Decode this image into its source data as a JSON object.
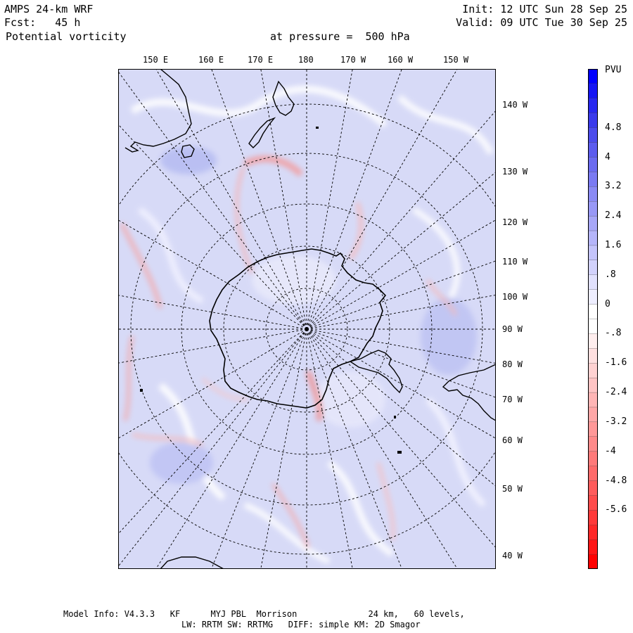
{
  "header": {
    "model": "AMPS 24-km WRF",
    "init": "Init: 12 UTC Sun 28 Sep 25",
    "fcst": "Fcst:   45 h",
    "valid": "Valid: 09 UTC Tue 30 Sep 25",
    "field": "Potential vorticity",
    "level": "at pressure =  500 hPa"
  },
  "map": {
    "top_longitudes": [
      "150 E",
      "160 E",
      "170 E",
      "180",
      "170 W",
      "160 W",
      "150 W"
    ],
    "right_longitudes": [
      "140 W",
      "130 W",
      "120 W",
      "110 W",
      "100 W",
      "90 W",
      "80 W",
      "70 W",
      "60 W",
      "50 W",
      "40 W"
    ]
  },
  "colorbar": {
    "unit": "PVU",
    "labels": [
      "4.8",
      "4",
      "3.2",
      "2.4",
      "1.6",
      ".8",
      "0",
      "-.8",
      "-1.6",
      "-2.4",
      "-3.2",
      "-4",
      "-4.8",
      "-5.6"
    ],
    "colors": [
      "#0000ff",
      "#1515f4",
      "#2828ef",
      "#3a3aeb",
      "#4c4cec",
      "#5c5cee",
      "#6b6bf0",
      "#7a7af2",
      "#8a8af4",
      "#9898f6",
      "#a7a7f8",
      "#b5b5fa",
      "#c4c4fb",
      "#d2d2fc",
      "#e1e1fd",
      "#eeeeff",
      "#ffffff",
      "#ffffff",
      "#ffeeee",
      "#ffe0e0",
      "#ffd2d2",
      "#ffc4c4",
      "#ffb5b5",
      "#ffa7a7",
      "#ff9898",
      "#ff8a8a",
      "#ff7a7a",
      "#ff6b6b",
      "#ff5c5c",
      "#ff4c4c",
      "#ff3a3a",
      "#ff2828",
      "#ff1515",
      "#ff0000"
    ]
  },
  "footer": {
    "line1": "Model Info: V4.3.3   KF      MYJ PBL  Morrison              24 km,   60 levels,",
    "line2": "LW: RRTM SW: RRTMG   DIFF: simple KM: 2D Smagor"
  }
}
